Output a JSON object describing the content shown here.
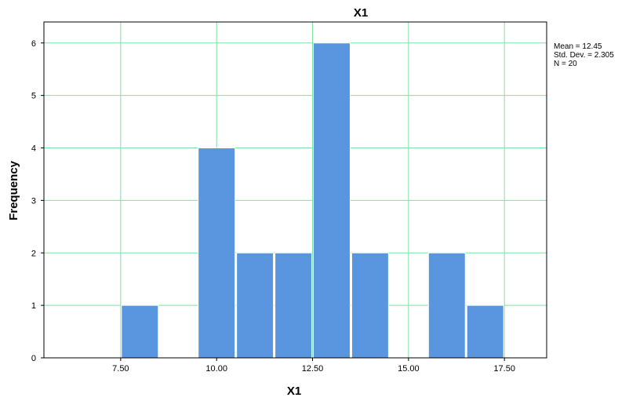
{
  "chart_data": {
    "type": "bar",
    "title": "X1",
    "xlabel": "X1",
    "ylabel": "Frequency",
    "bin_width": 1,
    "bins": [
      {
        "center": 8,
        "count": 1
      },
      {
        "center": 10,
        "count": 4
      },
      {
        "center": 11,
        "count": 2
      },
      {
        "center": 12,
        "count": 2
      },
      {
        "center": 13,
        "count": 6
      },
      {
        "center": 14,
        "count": 2
      },
      {
        "center": 16,
        "count": 2
      },
      {
        "center": 17,
        "count": 1
      }
    ],
    "x_ticks": [
      7.5,
      10.0,
      12.5,
      15.0,
      17.5
    ],
    "x_tick_labels": [
      "7.50",
      "10.00",
      "12.50",
      "15.00",
      "17.50"
    ],
    "y_ticks": [
      0,
      1,
      2,
      3,
      4,
      5,
      6
    ],
    "y_tick_labels": [
      "0",
      "1",
      "2",
      "3",
      "4",
      "5",
      "6"
    ],
    "xlim": [
      5.5,
      18.6
    ],
    "ylim": [
      0,
      6.4
    ],
    "grid": true,
    "bar_color": "#5a96e0",
    "grid_color": "#7de3a3",
    "stats": {
      "mean": "Mean = 12.45",
      "std_dev": "Std. Dev. = 2.305",
      "n": "N = 20"
    }
  }
}
